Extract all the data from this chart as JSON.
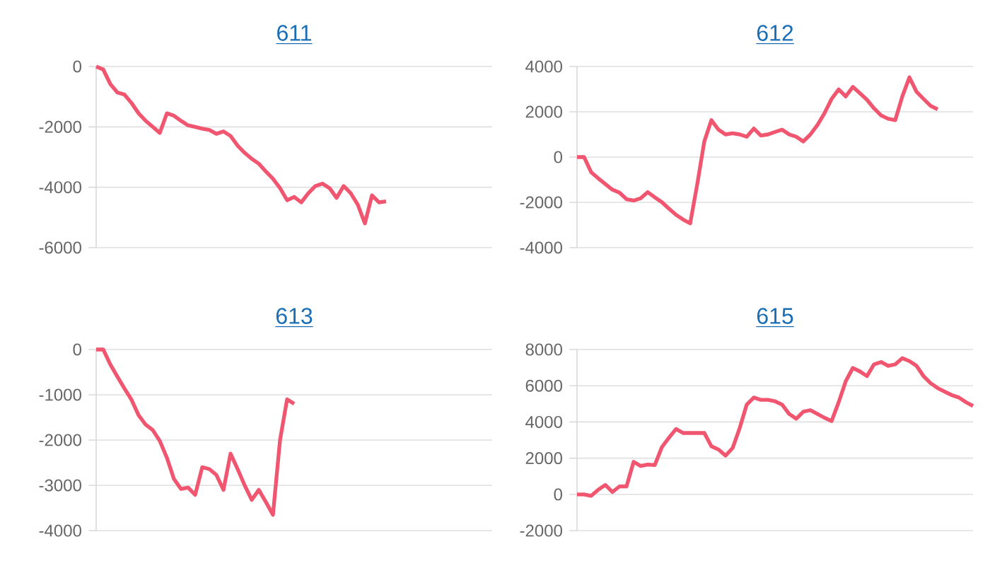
{
  "chart_data": [
    {
      "type": "line",
      "title": "611",
      "categories": [
        null,
        null,
        null,
        null,
        null,
        null,
        null,
        null,
        null,
        null,
        null,
        null,
        null,
        null,
        null,
        null,
        null,
        null,
        null,
        null,
        null,
        null,
        null,
        null,
        null,
        null,
        null,
        null,
        null,
        null,
        null,
        null,
        null,
        null,
        null,
        null,
        null,
        null,
        null,
        null,
        null,
        null,
        null,
        null,
        null,
        null,
        null,
        null,
        null,
        null,
        null,
        null,
        null,
        null,
        null,
        null,
        null
      ],
      "series": [
        {
          "color": "#f0566f",
          "values": [
            0,
            -100,
            -580,
            -860,
            -930,
            -1210,
            -1550,
            -1800,
            -2000,
            -2200,
            -1550,
            -1630,
            -1800,
            -1950,
            -2000,
            -2060,
            -2100,
            -2230,
            -2150,
            -2300,
            -2620,
            -2860,
            -3060,
            -3220,
            -3480,
            -3720,
            -4030,
            -4430,
            -4320,
            -4500,
            -4200,
            -3960,
            -3880,
            -4030,
            -4350,
            -3960,
            -4200,
            -4580,
            -5200,
            -4270,
            -4500,
            -4470,
            null,
            null,
            null,
            null,
            null,
            null,
            null,
            null,
            null,
            null,
            null,
            null,
            null,
            null,
            null
          ]
        }
      ],
      "ylim": [
        -6000,
        0
      ],
      "yticks": [
        -6000,
        -4000,
        -2000,
        0
      ],
      "grid": "y"
    },
    {
      "type": "line",
      "title": "612",
      "categories": [
        null,
        null,
        null,
        null,
        null,
        null,
        null,
        null,
        null,
        null,
        null,
        null,
        null,
        null,
        null,
        null,
        null,
        null,
        null,
        null,
        null,
        null,
        null,
        null,
        null,
        null,
        null,
        null,
        null,
        null,
        null,
        null,
        null,
        null,
        null,
        null,
        null,
        null,
        null,
        null,
        null,
        null,
        null,
        null,
        null,
        null,
        null,
        null,
        null,
        null,
        null,
        null,
        null,
        null,
        null,
        null,
        null
      ],
      "series": [
        {
          "color": "#f0566f",
          "values": [
            0,
            0,
            -670,
            -940,
            -1190,
            -1440,
            -1570,
            -1860,
            -1920,
            -1820,
            -1550,
            -1780,
            -1990,
            -2280,
            -2550,
            -2760,
            -2930,
            -1200,
            690,
            1630,
            1210,
            1000,
            1050,
            1000,
            900,
            1260,
            950,
            1000,
            1110,
            1210,
            1000,
            900,
            690,
            1000,
            1420,
            1940,
            2570,
            2990,
            2680,
            3100,
            2820,
            2530,
            2150,
            1840,
            1690,
            1630,
            2680,
            3520,
            2890,
            2570,
            2260,
            2110,
            null,
            null,
            null,
            null,
            null
          ]
        }
      ],
      "ylim": [
        -4000,
        4000
      ],
      "yticks": [
        -4000,
        -2000,
        0,
        2000,
        4000
      ],
      "grid": "y"
    },
    {
      "type": "line",
      "title": "613",
      "categories": [
        null,
        null,
        null,
        null,
        null,
        null,
        null,
        null,
        null,
        null,
        null,
        null,
        null,
        null,
        null,
        null,
        null,
        null,
        null,
        null,
        null,
        null,
        null,
        null,
        null,
        null,
        null,
        null,
        null,
        null,
        null,
        null,
        null,
        null,
        null,
        null,
        null,
        null,
        null,
        null,
        null,
        null,
        null,
        null,
        null,
        null,
        null,
        null,
        null,
        null,
        null,
        null,
        null,
        null,
        null,
        null,
        null
      ],
      "series": [
        {
          "color": "#f0566f",
          "values": [
            0,
            0,
            -330,
            -600,
            -860,
            -1110,
            -1450,
            -1660,
            -1780,
            -2020,
            -2390,
            -2860,
            -3080,
            -3050,
            -3210,
            -2600,
            -2640,
            -2770,
            -3100,
            -2300,
            -2640,
            -3000,
            -3320,
            -3100,
            -3370,
            -3650,
            -2000,
            -1100,
            -1200,
            null,
            null,
            null,
            null,
            null,
            null,
            null,
            null,
            null,
            null,
            null,
            null,
            null,
            null,
            null,
            null,
            null,
            null,
            null,
            null,
            null,
            null,
            null,
            null,
            null,
            null,
            null,
            null
          ]
        }
      ],
      "ylim": [
        -4000,
        0
      ],
      "yticks": [
        -4000,
        -3000,
        -2000,
        -1000,
        0
      ],
      "grid": "y"
    },
    {
      "type": "line",
      "title": "615",
      "categories": [
        null,
        null,
        null,
        null,
        null,
        null,
        null,
        null,
        null,
        null,
        null,
        null,
        null,
        null,
        null,
        null,
        null,
        null,
        null,
        null,
        null,
        null,
        null,
        null,
        null,
        null,
        null,
        null,
        null,
        null,
        null,
        null,
        null,
        null,
        null,
        null,
        null,
        null,
        null,
        null,
        null,
        null,
        null,
        null,
        null,
        null,
        null,
        null,
        null,
        null,
        null,
        null,
        null,
        null,
        null,
        null,
        null
      ],
      "series": [
        {
          "color": "#f0566f",
          "values": [
            0,
            0,
            -80,
            260,
            520,
            130,
            440,
            440,
            1800,
            1570,
            1650,
            1620,
            2610,
            3130,
            3610,
            3390,
            3390,
            3390,
            3390,
            2660,
            2480,
            2140,
            2560,
            3660,
            4960,
            5350,
            5220,
            5220,
            5140,
            4960,
            4440,
            4180,
            4570,
            4650,
            4440,
            4230,
            4050,
            5090,
            6250,
            6980,
            6790,
            6530,
            7180,
            7310,
            7100,
            7180,
            7520,
            7360,
            7100,
            6530,
            6140,
            5870,
            5670,
            5480,
            5350,
            5090,
            4880
          ]
        }
      ],
      "ylim": [
        -2000,
        8000
      ],
      "yticks": [
        -2000,
        0,
        2000,
        4000,
        6000,
        8000
      ],
      "grid": "y"
    }
  ]
}
